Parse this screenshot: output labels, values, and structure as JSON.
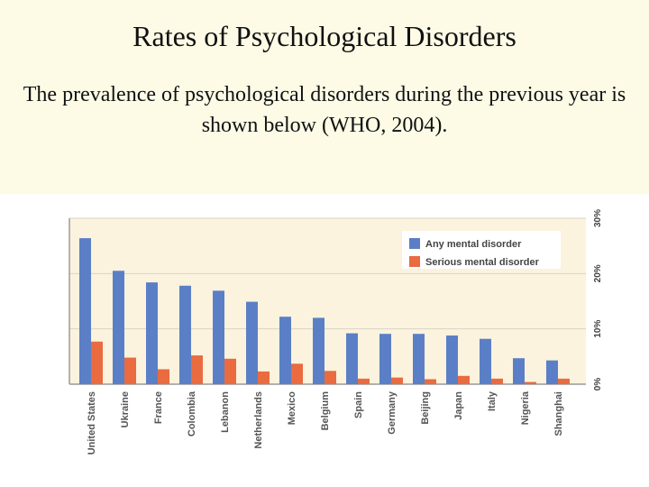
{
  "slide": {
    "title": "Rates of Psychological Disorders",
    "body": "The prevalence of psychological disorders during the previous year is shown below (WHO, 2004)."
  },
  "colors": {
    "header_bg": "#fdfbe6",
    "plot_bg": "#fbf3de",
    "any": "#5b7fc6",
    "serious": "#e96b3f"
  },
  "chart_data": {
    "type": "bar",
    "title": "",
    "xlabel": "",
    "ylabel": "",
    "categories": [
      "United States",
      "Ukraine",
      "France",
      "Colombia",
      "Lebanon",
      "Netherlands",
      "Mexico",
      "Belgium",
      "Spain",
      "Germany",
      "Beijing",
      "Japan",
      "Italy",
      "Nigeria",
      "Shanghai"
    ],
    "series": [
      {
        "name": "Any mental disorder",
        "values": [
          26.4,
          20.5,
          18.4,
          17.8,
          16.9,
          14.9,
          12.2,
          12.0,
          9.2,
          9.1,
          9.1,
          8.8,
          8.2,
          4.7,
          4.3
        ]
      },
      {
        "name": "Serious mental disorder",
        "values": [
          7.7,
          4.8,
          2.7,
          5.2,
          4.6,
          2.3,
          3.7,
          2.4,
          1.0,
          1.2,
          0.9,
          1.5,
          1.0,
          0.4,
          1.0
        ]
      }
    ],
    "ylim": [
      0,
      30
    ],
    "yticks": [
      "0%",
      "10%",
      "20%",
      "30%"
    ],
    "y_axis_side": "right",
    "grid": true,
    "legend_position": "top-right"
  }
}
